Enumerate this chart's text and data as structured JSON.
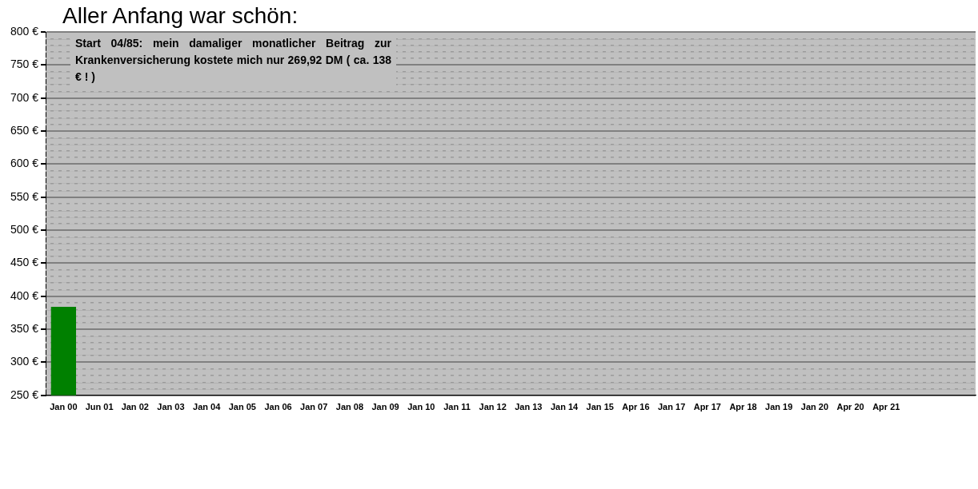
{
  "chart_data": {
    "type": "bar",
    "title": "Aller Anfang war schön:",
    "categories": [
      "Jan 00",
      "Jun 01",
      "Jan 02",
      "Jan 03",
      "Jan 04",
      "Jan 05",
      "Jan 06",
      "Jan 07",
      "Jan 08",
      "Jan 09",
      "Jan 10",
      "Jan 11",
      "Jan 12",
      "Jan 13",
      "Jan 14",
      "Jan 15",
      "Apr 16",
      "Jan 17",
      "Apr 17",
      "Apr 18",
      "Jan 19",
      "Jan 20",
      "Apr 20",
      "Apr 21",
      null,
      null
    ],
    "values": [
      384,
      null,
      null,
      null,
      null,
      null,
      null,
      null,
      null,
      null,
      null,
      null,
      null,
      null,
      null,
      null,
      null,
      null,
      null,
      null,
      null,
      null,
      null,
      null,
      null,
      null
    ],
    "color": "#008000",
    "ylim": [
      250,
      800
    ],
    "yticks": [
      {
        "value": 250,
        "label": "250 €"
      },
      {
        "value": 260,
        "label": null
      },
      {
        "value": 270,
        "label": null
      },
      {
        "value": 280,
        "label": null
      },
      {
        "value": 290,
        "label": null
      },
      {
        "value": 300,
        "label": "300 €"
      },
      {
        "value": 310,
        "label": null
      },
      {
        "value": 320,
        "label": null
      },
      {
        "value": 330,
        "label": null
      },
      {
        "value": 340,
        "label": null
      },
      {
        "value": 350,
        "label": "350 €"
      },
      {
        "value": 360,
        "label": null
      },
      {
        "value": 370,
        "label": null
      },
      {
        "value": 380,
        "label": null
      },
      {
        "value": 390,
        "label": null
      },
      {
        "value": 400,
        "label": "400 €"
      },
      {
        "value": 410,
        "label": null
      },
      {
        "value": 420,
        "label": null
      },
      {
        "value": 430,
        "label": null
      },
      {
        "value": 440,
        "label": null
      },
      {
        "value": 450,
        "label": "450 €"
      },
      {
        "value": 460,
        "label": null
      },
      {
        "value": 470,
        "label": null
      },
      {
        "value": 480,
        "label": null
      },
      {
        "value": 490,
        "label": null
      },
      {
        "value": 500,
        "label": "500 €"
      },
      {
        "value": 510,
        "label": null
      },
      {
        "value": 520,
        "label": null
      },
      {
        "value": 530,
        "label": null
      },
      {
        "value": 540,
        "label": null
      },
      {
        "value": 550,
        "label": "550 €"
      },
      {
        "value": 560,
        "label": null
      },
      {
        "value": 570,
        "label": null
      },
      {
        "value": 580,
        "label": null
      },
      {
        "value": 590,
        "label": null
      },
      {
        "value": 600,
        "label": "600 €"
      },
      {
        "value": 610,
        "label": null
      },
      {
        "value": 620,
        "label": null
      },
      {
        "value": 630,
        "label": null
      },
      {
        "value": 640,
        "label": null
      },
      {
        "value": 650,
        "label": "650 €"
      },
      {
        "value": 660,
        "label": null
      },
      {
        "value": 670,
        "label": null
      },
      {
        "value": 680,
        "label": null
      },
      {
        "value": 690,
        "label": null
      },
      {
        "value": 700,
        "label": "700 €"
      },
      {
        "value": 710,
        "label": null
      },
      {
        "value": 720,
        "label": null
      },
      {
        "value": 730,
        "label": null
      },
      {
        "value": 740,
        "label": null
      },
      {
        "value": 750,
        "label": "750 €"
      },
      {
        "value": 760,
        "label": null
      },
      {
        "value": 770,
        "label": null
      },
      {
        "value": 780,
        "label": null
      },
      {
        "value": 790,
        "label": null
      },
      {
        "value": 800,
        "label": "800 €"
      }
    ],
    "grid": "y",
    "legend": false,
    "annotations": [
      "Start 04/85: mein damaliger monatlicher Beitrag zur Krankenversicherung kostete mich nur 269,92 DM ( ca. 138 € ! )"
    ]
  }
}
